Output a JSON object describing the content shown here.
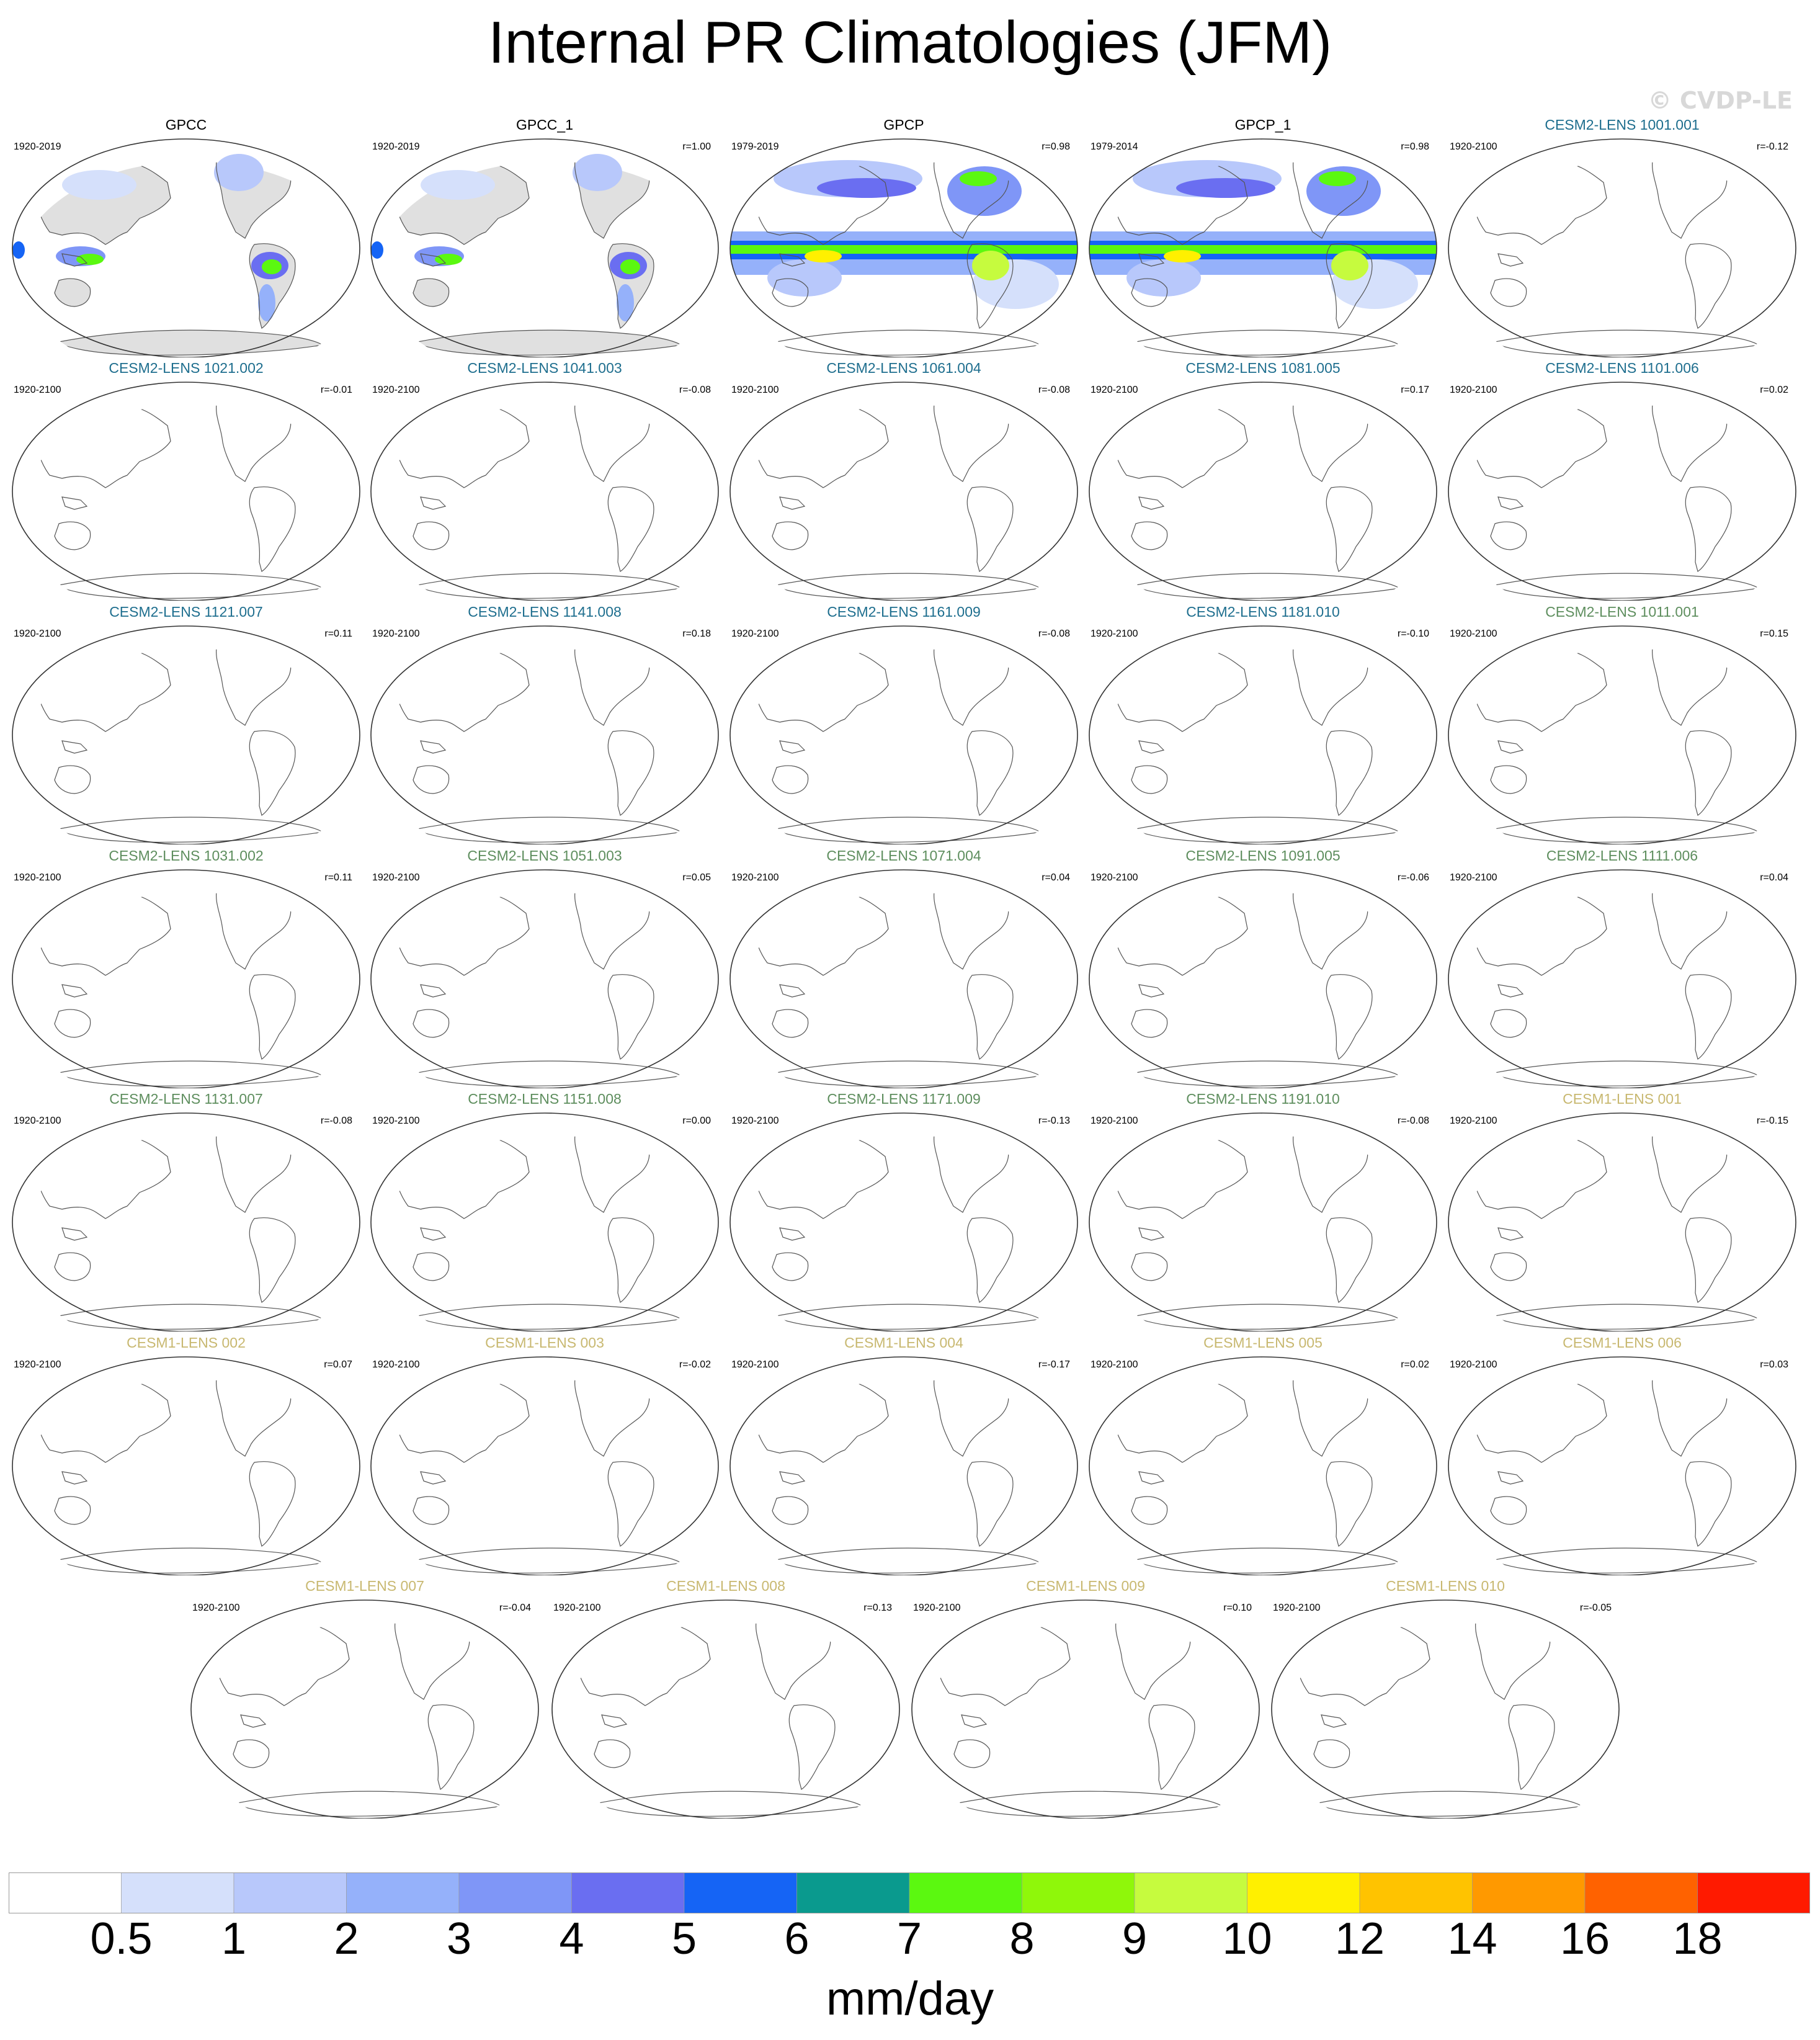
{
  "title": "Internal PR Climatologies (JFM)",
  "watermark": "© CVDP-LE",
  "colors": {
    "obs_title": "#000000",
    "cesm2_a": "#1e6e8e",
    "cesm2_b": "#5e8e5e",
    "cesm1": "#c8b870",
    "land": "#e0e0e0"
  },
  "panels": [
    {
      "title": "GPCC",
      "period": "1920-2019",
      "r": "",
      "group": "obs",
      "kind": "gpcc"
    },
    {
      "title": "GPCC_1",
      "period": "1920-2019",
      "r": "r=1.00",
      "group": "obs",
      "kind": "gpcc"
    },
    {
      "title": "GPCP",
      "period": "1979-2019",
      "r": "r=0.98",
      "group": "obs",
      "kind": "gpcp"
    },
    {
      "title": "GPCP_1",
      "period": "1979-2014",
      "r": "r=0.98",
      "group": "obs",
      "kind": "gpcp"
    },
    {
      "title": "CESM2-LENS 1001.001",
      "period": "1920-2100",
      "r": "r=-0.12",
      "group": "cesm2_a",
      "kind": "blank"
    },
    {
      "title": "CESM2-LENS 1021.002",
      "period": "1920-2100",
      "r": "r=-0.01",
      "group": "cesm2_a",
      "kind": "blank"
    },
    {
      "title": "CESM2-LENS 1041.003",
      "period": "1920-2100",
      "r": "r=-0.08",
      "group": "cesm2_a",
      "kind": "blank"
    },
    {
      "title": "CESM2-LENS 1061.004",
      "period": "1920-2100",
      "r": "r=-0.08",
      "group": "cesm2_a",
      "kind": "blank"
    },
    {
      "title": "CESM2-LENS 1081.005",
      "period": "1920-2100",
      "r": "r=0.17",
      "group": "cesm2_a",
      "kind": "blank"
    },
    {
      "title": "CESM2-LENS 1101.006",
      "period": "1920-2100",
      "r": "r=0.02",
      "group": "cesm2_a",
      "kind": "blank"
    },
    {
      "title": "CESM2-LENS 1121.007",
      "period": "1920-2100",
      "r": "r=0.11",
      "group": "cesm2_a",
      "kind": "blank"
    },
    {
      "title": "CESM2-LENS 1141.008",
      "period": "1920-2100",
      "r": "r=0.18",
      "group": "cesm2_a",
      "kind": "blank"
    },
    {
      "title": "CESM2-LENS 1161.009",
      "period": "1920-2100",
      "r": "r=-0.08",
      "group": "cesm2_a",
      "kind": "blank"
    },
    {
      "title": "CESM2-LENS 1181.010",
      "period": "1920-2100",
      "r": "r=-0.10",
      "group": "cesm2_a",
      "kind": "blank"
    },
    {
      "title": "CESM2-LENS 1011.001",
      "period": "1920-2100",
      "r": "r=0.15",
      "group": "cesm2_b",
      "kind": "blank"
    },
    {
      "title": "CESM2-LENS 1031.002",
      "period": "1920-2100",
      "r": "r=0.11",
      "group": "cesm2_b",
      "kind": "blank"
    },
    {
      "title": "CESM2-LENS 1051.003",
      "period": "1920-2100",
      "r": "r=0.05",
      "group": "cesm2_b",
      "kind": "blank"
    },
    {
      "title": "CESM2-LENS 1071.004",
      "period": "1920-2100",
      "r": "r=0.04",
      "group": "cesm2_b",
      "kind": "blank"
    },
    {
      "title": "CESM2-LENS 1091.005",
      "period": "1920-2100",
      "r": "r=-0.06",
      "group": "cesm2_b",
      "kind": "blank"
    },
    {
      "title": "CESM2-LENS 1111.006",
      "period": "1920-2100",
      "r": "r=0.04",
      "group": "cesm2_b",
      "kind": "blank"
    },
    {
      "title": "CESM2-LENS 1131.007",
      "period": "1920-2100",
      "r": "r=-0.08",
      "group": "cesm2_b",
      "kind": "blank"
    },
    {
      "title": "CESM2-LENS 1151.008",
      "period": "1920-2100",
      "r": "r=0.00",
      "group": "cesm2_b",
      "kind": "blank"
    },
    {
      "title": "CESM2-LENS 1171.009",
      "period": "1920-2100",
      "r": "r=-0.13",
      "group": "cesm2_b",
      "kind": "blank"
    },
    {
      "title": "CESM2-LENS 1191.010",
      "period": "1920-2100",
      "r": "r=-0.08",
      "group": "cesm2_b",
      "kind": "blank"
    },
    {
      "title": "CESM1-LENS 001",
      "period": "1920-2100",
      "r": "r=-0.15",
      "group": "cesm1",
      "kind": "blank"
    },
    {
      "title": "CESM1-LENS 002",
      "period": "1920-2100",
      "r": "r=0.07",
      "group": "cesm1",
      "kind": "blank"
    },
    {
      "title": "CESM1-LENS 003",
      "period": "1920-2100",
      "r": "r=-0.02",
      "group": "cesm1",
      "kind": "blank"
    },
    {
      "title": "CESM1-LENS 004",
      "period": "1920-2100",
      "r": "r=-0.17",
      "group": "cesm1",
      "kind": "blank"
    },
    {
      "title": "CESM1-LENS 005",
      "period": "1920-2100",
      "r": "r=0.02",
      "group": "cesm1",
      "kind": "blank"
    },
    {
      "title": "CESM1-LENS 006",
      "period": "1920-2100",
      "r": "r=0.03",
      "group": "cesm1",
      "kind": "blank"
    },
    {
      "title": "CESM1-LENS 007",
      "period": "1920-2100",
      "r": "r=-0.04",
      "group": "cesm1",
      "kind": "blank"
    },
    {
      "title": "CESM1-LENS 008",
      "period": "1920-2100",
      "r": "r=0.13",
      "group": "cesm1",
      "kind": "blank"
    },
    {
      "title": "CESM1-LENS 009",
      "period": "1920-2100",
      "r": "r=0.10",
      "group": "cesm1",
      "kind": "blank"
    },
    {
      "title": "CESM1-LENS 010",
      "period": "1920-2100",
      "r": "r=-0.05",
      "group": "cesm1",
      "kind": "blank"
    }
  ],
  "colorbar": {
    "unit": "mm/day",
    "ticks": [
      "0.5",
      "1",
      "2",
      "3",
      "4",
      "5",
      "6",
      "7",
      "8",
      "9",
      "10",
      "12",
      "14",
      "16",
      "18"
    ],
    "colors": [
      "#ffffff",
      "#d5e0fb",
      "#b8c8fb",
      "#95b1fa",
      "#7f96f7",
      "#6a6ef1",
      "#1564f5",
      "#0a9a8e",
      "#5bf810",
      "#8ff70a",
      "#c6fb3e",
      "#fff000",
      "#ffc300",
      "#ff9900",
      "#ff6200",
      "#ff1a00"
    ]
  },
  "chart_data": {
    "type": "heatmap",
    "title": "Internal PR Climatologies (JFM)",
    "colorbar_label": "mm/day",
    "levels": [
      0.5,
      1,
      2,
      3,
      4,
      5,
      6,
      7,
      8,
      9,
      10,
      12,
      14,
      16,
      18
    ],
    "grid": false
  }
}
